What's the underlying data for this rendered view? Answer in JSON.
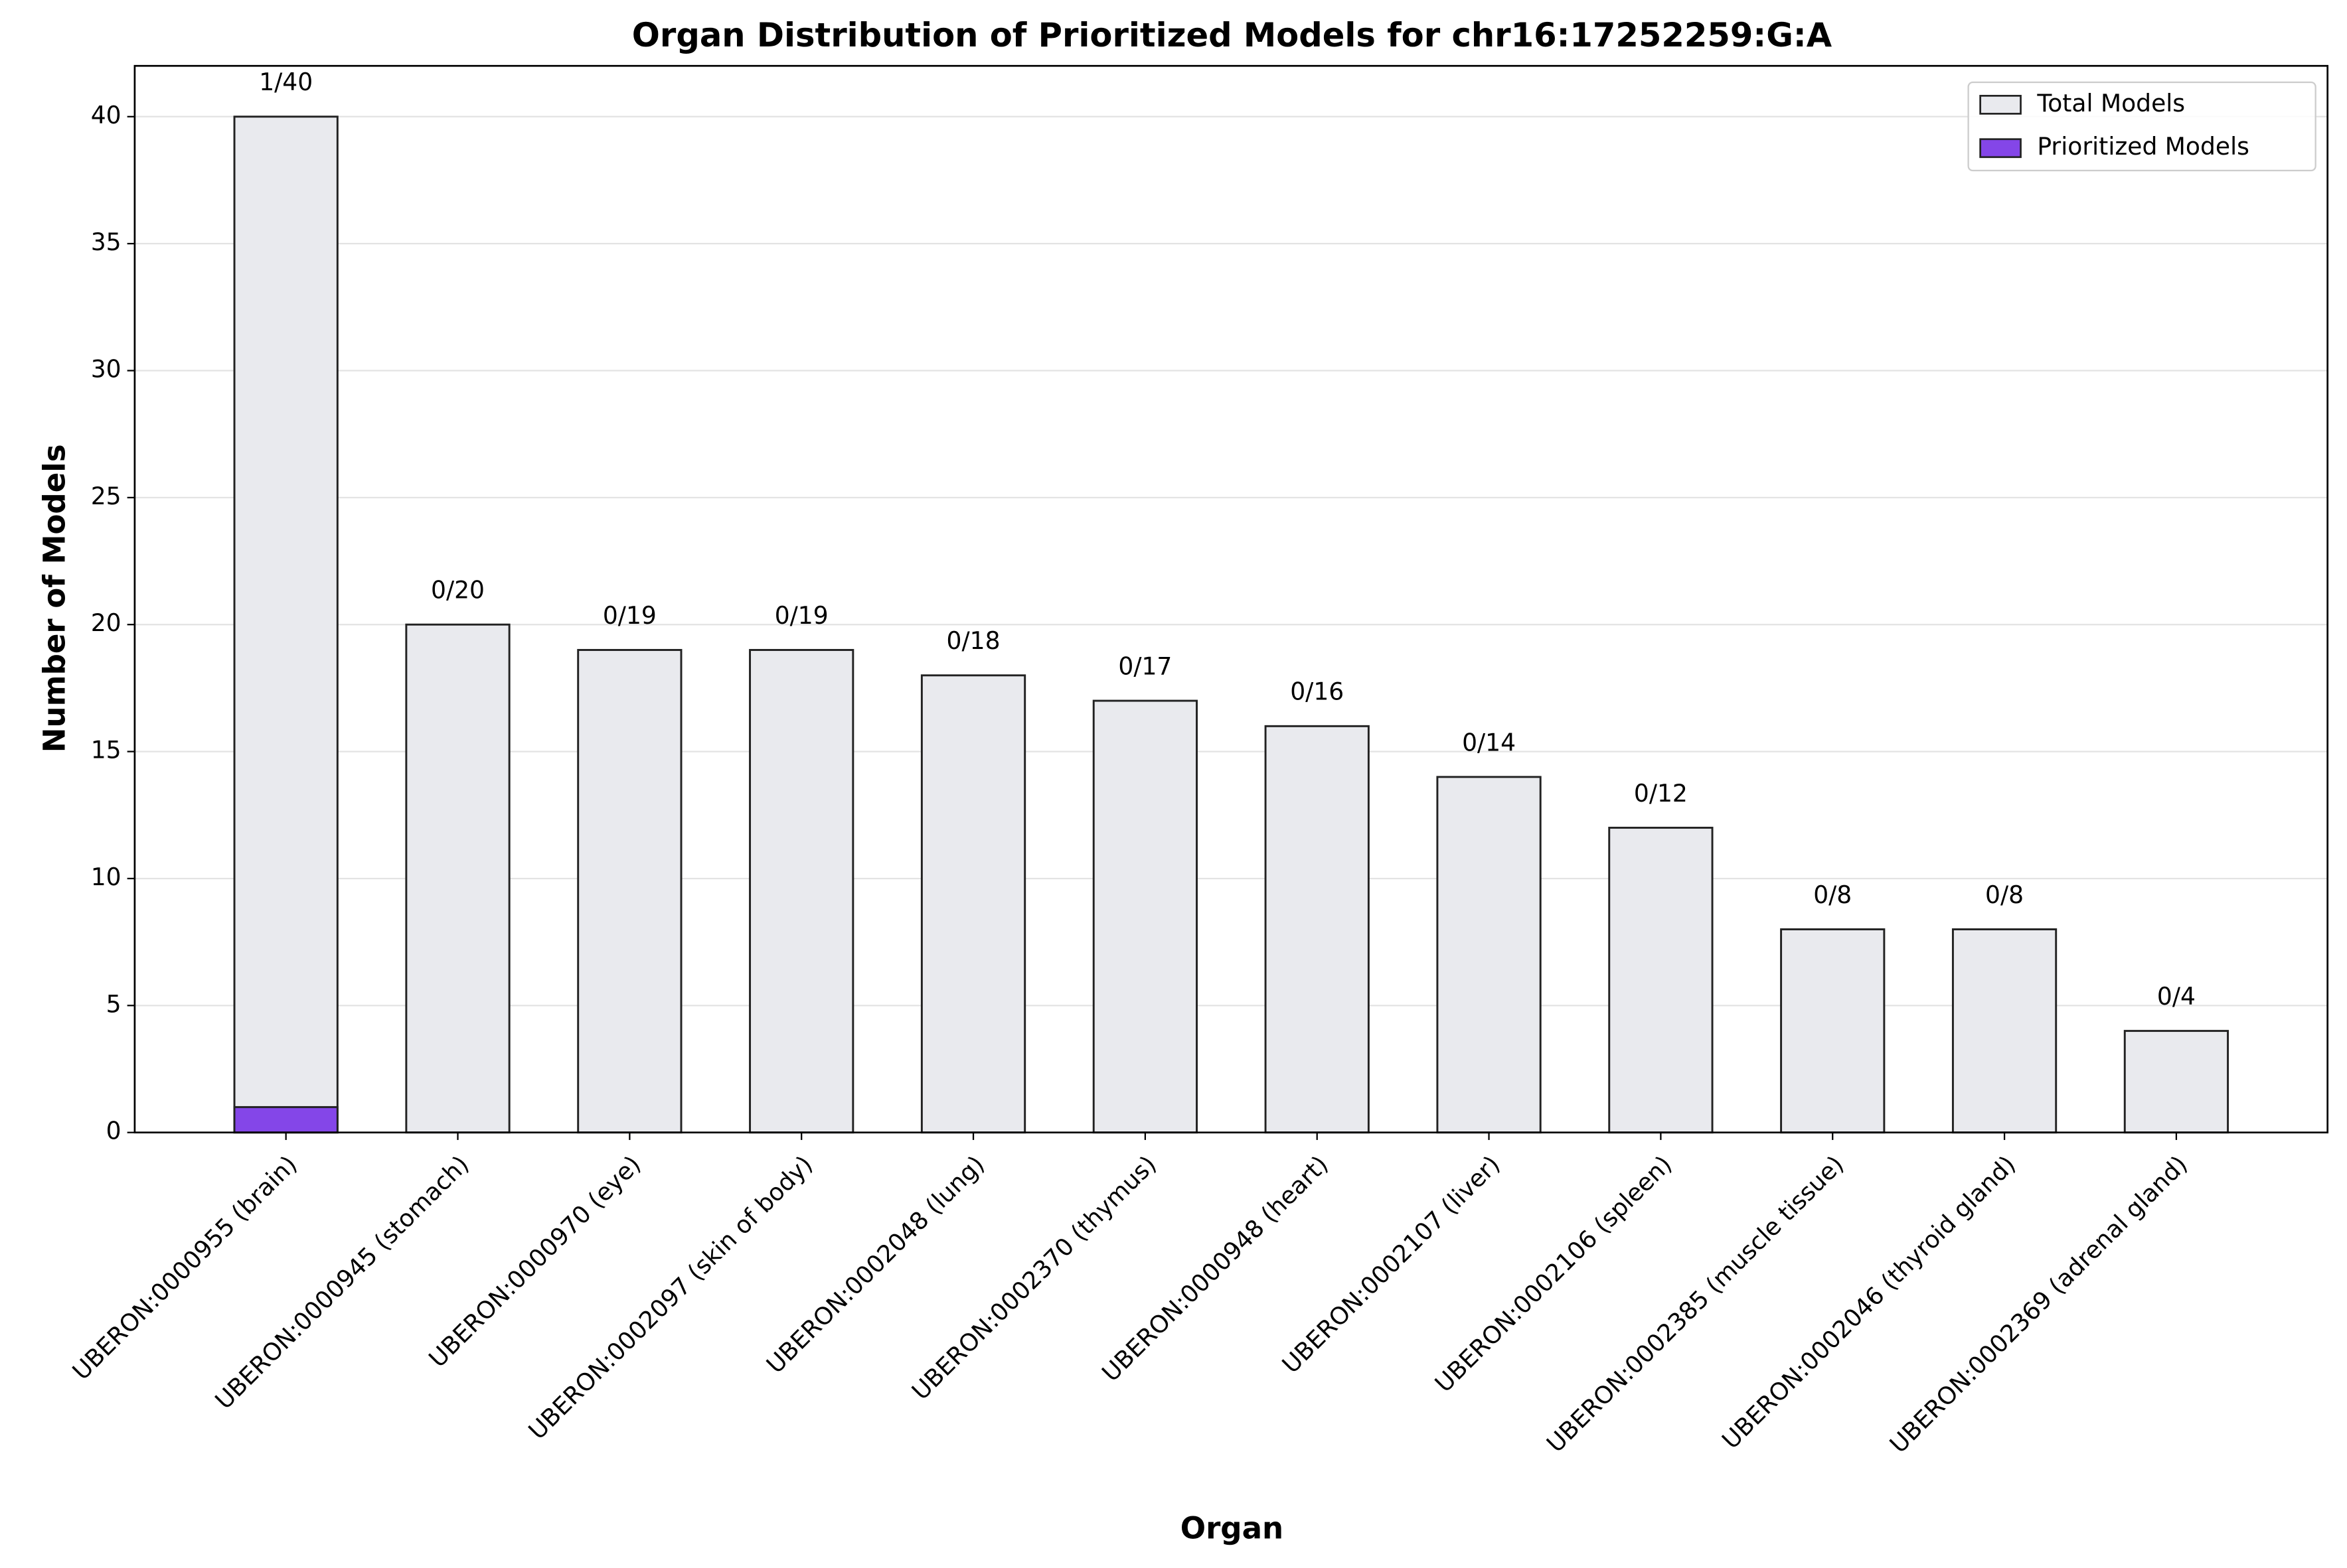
{
  "chart_data": {
    "type": "bar",
    "title": "Organ Distribution of Prioritized Models for chr16:17252259:G:A",
    "x_label": "Organ",
    "y_label": "Number of Models",
    "categories": [
      "UBERON:0000955 (brain)",
      "UBERON:0000945 (stomach)",
      "UBERON:0000970 (eye)",
      "UBERON:0002097 (skin of body)",
      "UBERON:0002048 (lung)",
      "UBERON:0002370 (thymus)",
      "UBERON:0000948 (heart)",
      "UBERON:0002107 (liver)",
      "UBERON:0002106 (spleen)",
      "UBERON:0002385 (muscle tissue)",
      "UBERON:0002046 (thyroid gland)",
      "UBERON:0002369 (adrenal gland)"
    ],
    "series": [
      {
        "name": "Total Models",
        "color": "#e9eaee",
        "values": [
          40,
          20,
          19,
          19,
          18,
          17,
          16,
          14,
          12,
          8,
          8,
          4
        ]
      },
      {
        "name": "Prioritized Models",
        "color": "#8446e8",
        "values": [
          1,
          0,
          0,
          0,
          0,
          0,
          0,
          0,
          0,
          0,
          0,
          0
        ]
      }
    ],
    "value_labels": [
      "1/40",
      "0/20",
      "0/19",
      "0/19",
      "0/18",
      "0/17",
      "0/16",
      "0/14",
      "0/12",
      "0/8",
      "0/8",
      "0/4"
    ],
    "ylim": [
      0,
      42
    ],
    "yticks": [
      0,
      5,
      10,
      15,
      20,
      25,
      30,
      35,
      40
    ],
    "grid": true,
    "legend": "upper right"
  }
}
